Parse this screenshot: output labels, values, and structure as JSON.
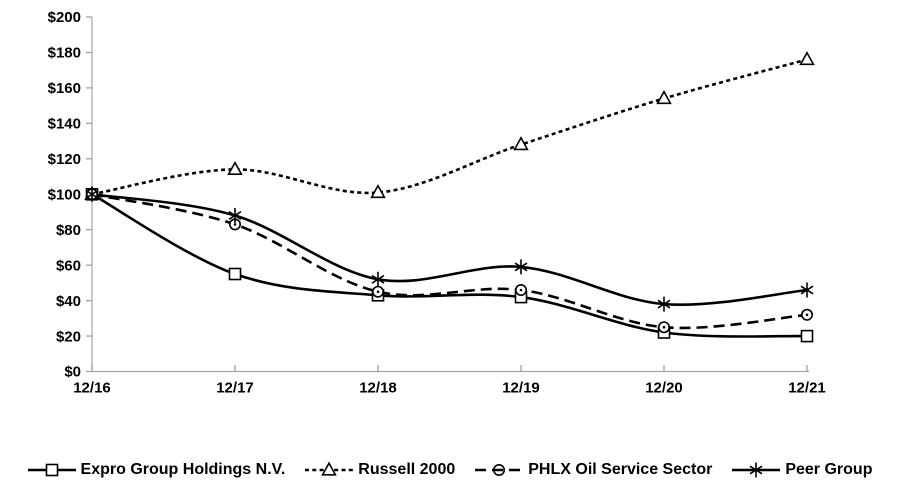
{
  "chart_data": {
    "type": "line",
    "title": "",
    "x": [
      "12/16",
      "12/17",
      "12/18",
      "12/19",
      "12/20",
      "12/21"
    ],
    "series": [
      {
        "name": "Expro Group Holdings N.V.",
        "marker": "square",
        "line_style": "solid",
        "values": [
          100,
          55,
          43,
          42,
          22,
          20
        ]
      },
      {
        "name": "Russell 2000",
        "marker": "triangle",
        "line_style": "dotted",
        "values": [
          100,
          114,
          101,
          128,
          154,
          176
        ]
      },
      {
        "name": "PHLX Oil Service Sector",
        "marker": "circle",
        "line_style": "dashed",
        "values": [
          100,
          83,
          45,
          46,
          25,
          32
        ]
      },
      {
        "name": "Peer Group",
        "marker": "star",
        "line_style": "solid",
        "values": [
          100,
          88,
          52,
          59,
          38,
          46
        ]
      }
    ],
    "ylim": [
      0,
      200
    ],
    "y_tick_step": 20,
    "y_tick_labels": [
      "$0",
      "$20",
      "$40",
      "$60",
      "$80",
      "$100",
      "$120",
      "$140",
      "$160",
      "$180",
      "$200"
    ],
    "grid": "off",
    "legend_position": "bottom",
    "colors": {
      "series_line": "#000000",
      "axis": "#a6a6a6",
      "tick": "#9b9b9b",
      "label": "#000000",
      "marker_fill": "#ffffff"
    }
  }
}
